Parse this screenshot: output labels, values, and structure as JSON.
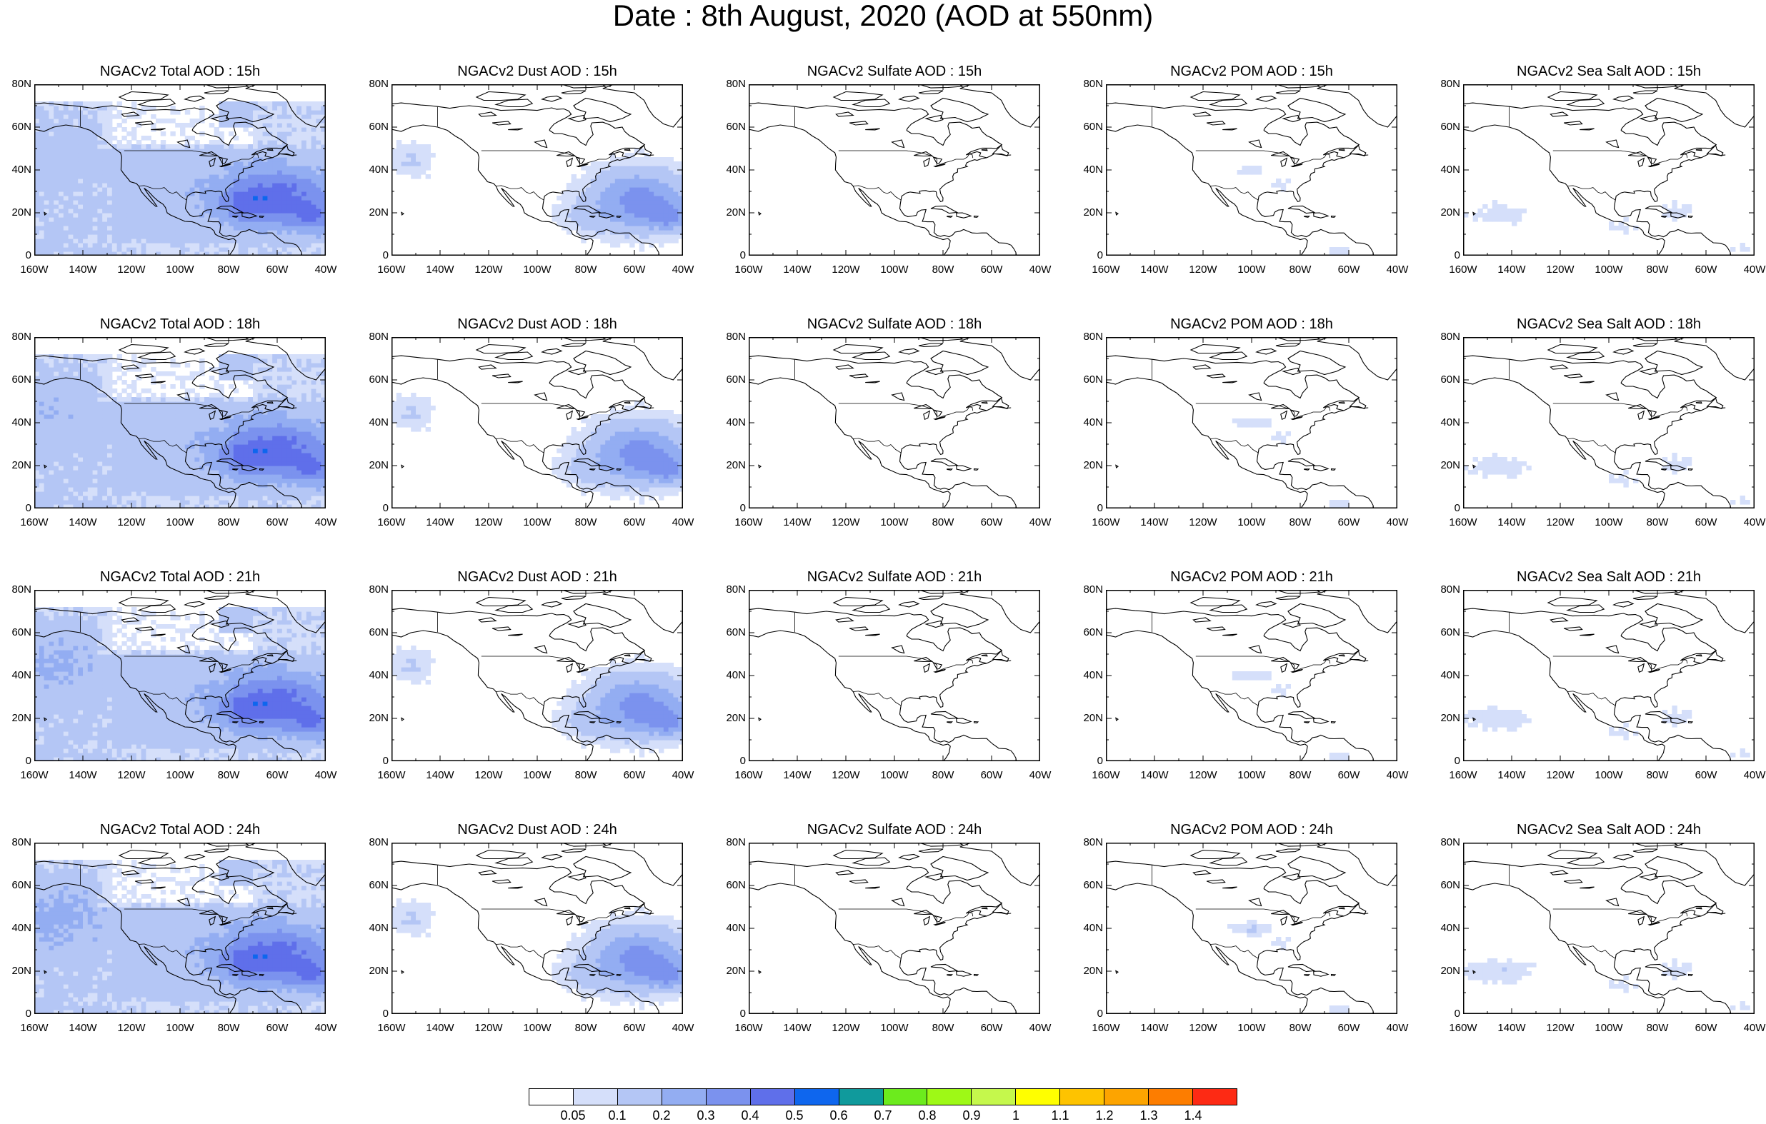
{
  "title": "Date : 8th August, 2020 (AOD at 550nm)",
  "rows": [
    "15h",
    "18h",
    "21h",
    "24h"
  ],
  "columns": [
    {
      "species": "Total",
      "title_template": "NGACv2 Total AOD : {h}"
    },
    {
      "species": "Dust",
      "title_template": "NGACv2 Dust AOD : {h}"
    },
    {
      "species": "Sulfate",
      "title_template": "NGACv2 Sulfate AOD : {h}"
    },
    {
      "species": "POM",
      "title_template": "NGACv2 POM AOD : {h}"
    },
    {
      "species": "SeaSalt",
      "title_template": "NGACv2 Sea Salt AOD : {h}"
    }
  ],
  "panel_title_overrides": {
    "3-4": "NGACv2 Sea Salt  AOD : 24h"
  },
  "map": {
    "lon_range": [
      -160,
      -40
    ],
    "lat_range": [
      0,
      80
    ],
    "x_ticks": [
      "160W",
      "140W",
      "120W",
      "100W",
      "80W",
      "60W",
      "40W"
    ],
    "y_ticks": [
      "80N",
      "60N",
      "40N",
      "20N",
      "0"
    ]
  },
  "colorbar": {
    "colors": [
      "#ffffff",
      "#d5dffa",
      "#b4c6f5",
      "#93adf2",
      "#7b92ee",
      "#5f6fea",
      "#0e66ee",
      "#109a9c",
      "#6ceb1d",
      "#9ef916",
      "#c5f84c",
      "#ffff00",
      "#fec300",
      "#fda400",
      "#fd7d00",
      "#fd2a14"
    ],
    "labels": [
      "0.05",
      "0.1",
      "0.2",
      "0.3",
      "0.4",
      "0.5",
      "0.6",
      "0.7",
      "0.8",
      "0.9",
      "1",
      "1.1",
      "1.2",
      "1.3",
      "1.4"
    ]
  }
}
